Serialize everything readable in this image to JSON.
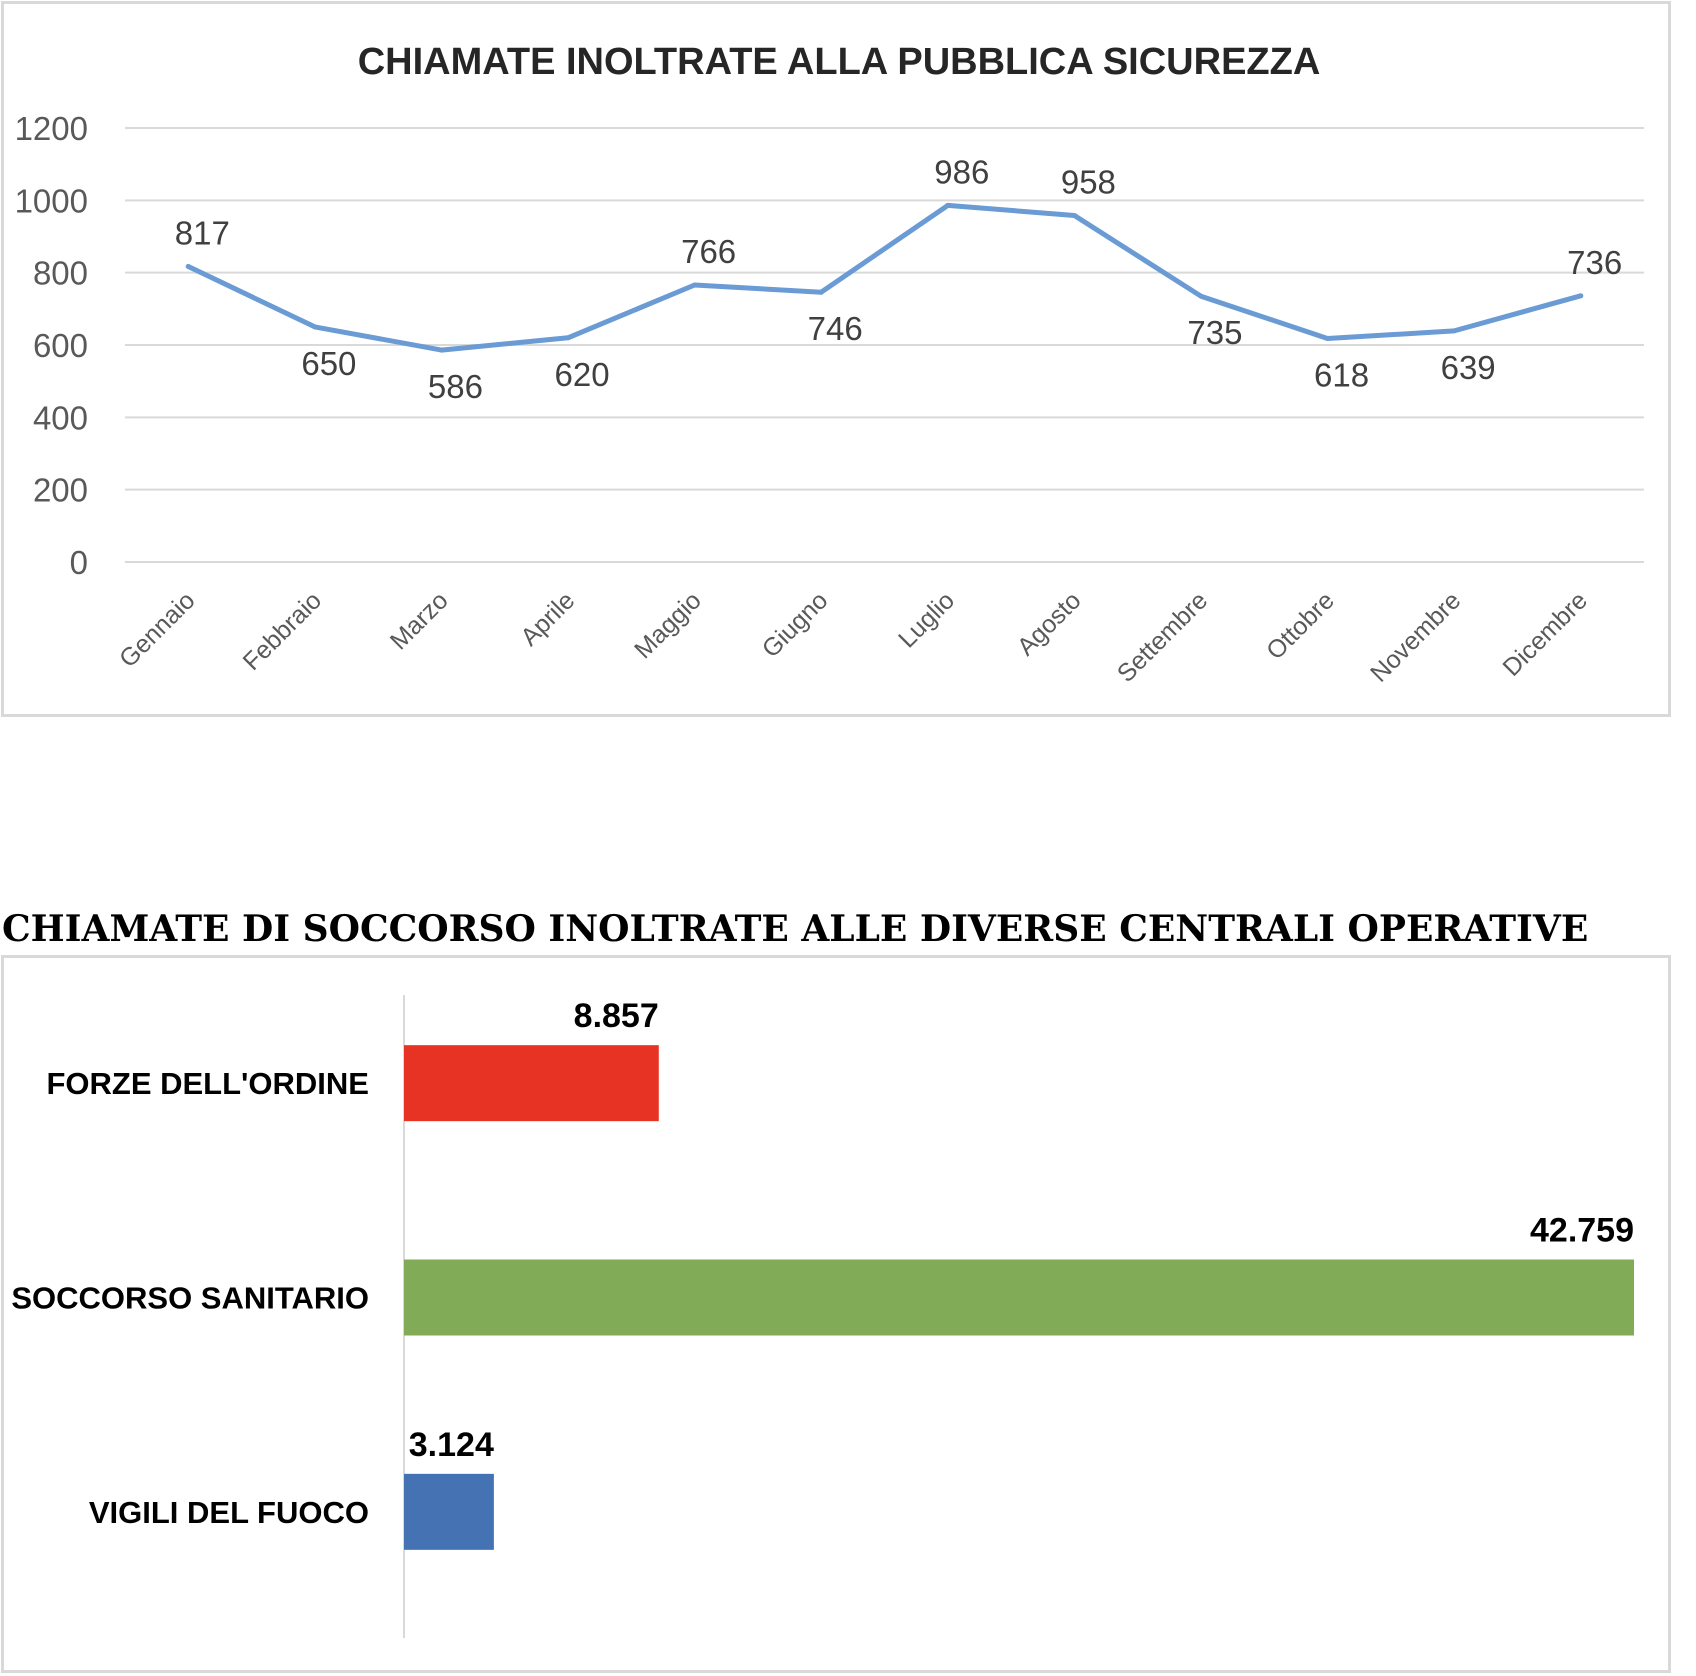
{
  "chart_data": [
    {
      "type": "line",
      "title": "CHIAMATE INOLTRATE ALLA PUBBLICA SICUREZZA",
      "categories": [
        "Gennaio",
        "Febbraio",
        "Marzo",
        "Aprile",
        "Maggio",
        "Giugno",
        "Luglio",
        "Agosto",
        "Settembre",
        "Ottobre",
        "Novembre",
        "Dicembre"
      ],
      "values": [
        817,
        650,
        586,
        620,
        766,
        746,
        986,
        958,
        735,
        618,
        639,
        736
      ],
      "data_labels": [
        "817",
        "650",
        "586",
        "620",
        "766",
        "746",
        "986",
        "958",
        "735",
        "618",
        "639",
        "736"
      ],
      "y_ticks": [
        "0",
        "200",
        "400",
        "600",
        "800",
        "1000",
        "1200"
      ],
      "ylim": [
        0,
        1200
      ],
      "grid": true,
      "line_color": "#6a9bd4"
    },
    {
      "type": "bar",
      "orientation": "horizontal",
      "title": "CHIAMATE DI SOCCORSO INOLTRATE ALLE DIVERSE CENTRALI OPERATIVE",
      "categories": [
        "FORZE DELL'ORDINE",
        "SOCCORSO SANITARIO",
        "VIGILI DEL FUOCO"
      ],
      "values": [
        8857,
        42759,
        3124
      ],
      "data_labels": [
        "8.857",
        "42.759",
        "3.124"
      ],
      "colors": [
        "#e73323",
        "#81ab56",
        "#4472b2"
      ],
      "grid": false
    }
  ]
}
